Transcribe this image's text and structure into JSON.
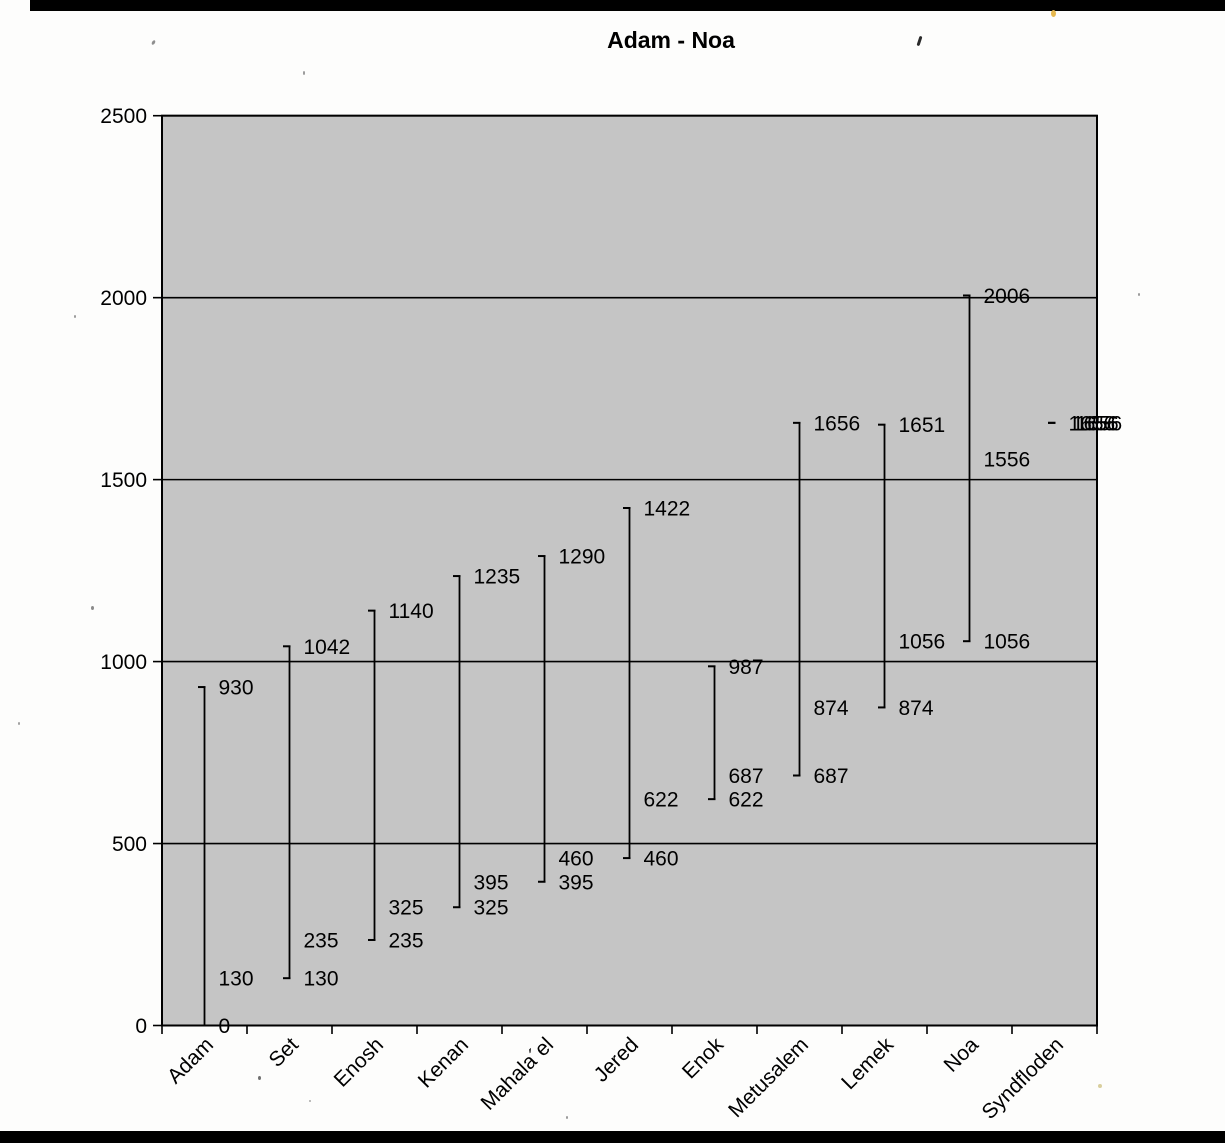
{
  "chart_data": {
    "type": "hilo-line",
    "title": "Adam - Noa",
    "categories": [
      "Adam",
      "Set",
      "Enosh",
      "Kenan",
      "Mahala´el",
      "Jered",
      "Enok",
      "Metusalem",
      "Lemek",
      "Noa",
      "Syndfloden"
    ],
    "series": [
      {
        "name": "low",
        "values": [
          0,
          130,
          235,
          325,
          395,
          460,
          622,
          687,
          874,
          1056,
          1656
        ]
      },
      {
        "name": "mid",
        "values": [
          130,
          235,
          325,
          395,
          460,
          622,
          687,
          874,
          1056,
          1556,
          1656
        ]
      },
      {
        "name": "high",
        "values": [
          930,
          1042,
          1140,
          1235,
          1290,
          1422,
          987,
          1656,
          1651,
          2006,
          1656
        ]
      }
    ],
    "ylim": [
      0,
      2500
    ],
    "yticks": [
      0,
      500,
      1000,
      1500,
      2000,
      2500
    ],
    "gridlines": true,
    "legend": "none",
    "colors": {
      "plot_bg": "#c5c5c5",
      "line": "#000000",
      "text": "#000000",
      "page_bg": "#fdfdfc",
      "scan_bar": "#000000"
    }
  }
}
